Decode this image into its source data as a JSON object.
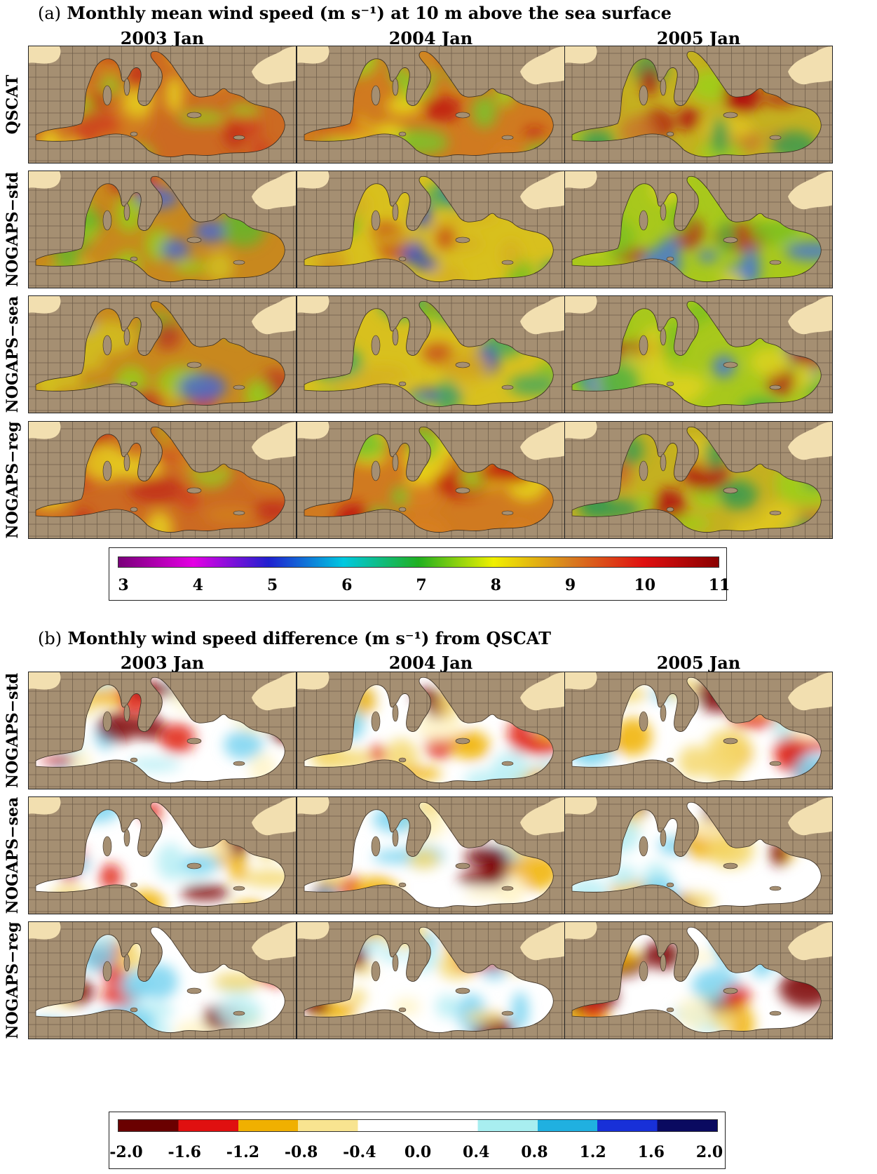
{
  "section_a": {
    "title_lead": "(a)",
    "title_text": "Monthly mean wind speed (m s⁻¹) at 10 m above the sea surface",
    "columns": [
      "2003 Jan",
      "2004 Jan",
      "2005 Jan"
    ],
    "rows": [
      "QSCAT",
      "NOGAPS−std",
      "NOGAPS−sea",
      "NOGAPS−reg"
    ],
    "colorbar_ticks": [
      "3",
      "4",
      "5",
      "6",
      "7",
      "8",
      "9",
      "10",
      "11"
    ],
    "colorbar_colors": [
      "#7a007a",
      "#e400e4",
      "#2020d0",
      "#00c8e0",
      "#20b020",
      "#f0f000",
      "#d88020",
      "#e01010",
      "#8a0000"
    ]
  },
  "section_b": {
    "title_lead": "(b)",
    "title_text": "Monthly wind speed difference (m s⁻¹) from QSCAT",
    "columns": [
      "2003 Jan",
      "2004 Jan",
      "2005 Jan"
    ],
    "rows": [
      "NOGAPS−std",
      "NOGAPS−sea",
      "NOGAPS−reg"
    ],
    "colorbar_ticks": [
      "-2.0",
      "-1.6",
      "-1.2",
      "-0.8",
      "-0.4",
      "0.0",
      "0.4",
      "0.8",
      "1.2",
      "1.6",
      "2.0"
    ],
    "colorbar_colors": [
      "#6a0000",
      "#e01010",
      "#f0b000",
      "#f8e490",
      "#ffffff",
      "#ffffff",
      "#a8eef0",
      "#20b0e0",
      "#1830d8",
      "#0a0a60"
    ]
  },
  "map_colors": {
    "land": "#a58f72",
    "grid": "#5a4a3a",
    "landmass_light": "#f2dfb0"
  }
}
